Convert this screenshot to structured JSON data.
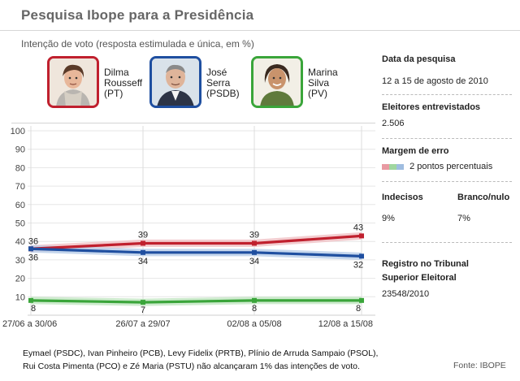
{
  "header": {
    "title": "Pesquisa Ibope para a Presidência",
    "subtitle": "Intenção de voto (resposta estimulada e única, em %)"
  },
  "candidates": [
    {
      "name1": "Dilma",
      "name2": "Rousseff",
      "party": "(PT)",
      "color": "#c0202e"
    },
    {
      "name1": "José",
      "name2": "Serra",
      "party": "(PSDB)",
      "color": "#1f4fa0"
    },
    {
      "name1": "Marina",
      "name2": "Silva",
      "party": "(PV)",
      "color": "#3aa53a"
    }
  ],
  "sidebar": {
    "date_label": "Data da pesquisa",
    "date_value": "12 a 15 de agosto de 2010",
    "voters_label": "Eleitores entrevistados",
    "voters_value": "2.506",
    "margin_label": "Margem de erro",
    "margin_value": "2 pontos percentuais",
    "undecided_label": "Indecisos",
    "undecided_value": "9%",
    "blank_label": "Branco/nulo",
    "blank_value": "7%",
    "registry_label": "Registro no Tribunal Superior Eleitoral",
    "registry_value": "23548/2010"
  },
  "footnote": {
    "line1": "Eymael (PSDC), Ivan Pinheiro (PCB), Levy Fidelix (PRTB), Plínio de Arruda Sampaio (PSOL),",
    "line2": "Rui Costa Pimenta (PCO) e Zé Maria (PSTU) não alcançaram 1% das intenções de voto."
  },
  "source": "Fonte: IBOPE",
  "chart_data": {
    "type": "line",
    "categories": [
      "27/06 a 30/06",
      "26/07 a 29/07",
      "02/08 a 05/08",
      "12/08 a 15/08"
    ],
    "series": [
      {
        "name": "Dilma Rousseff (PT)",
        "values": [
          36,
          39,
          39,
          43
        ],
        "color": "#c0202e",
        "band": "#f1c4c8"
      },
      {
        "name": "José Serra (PSDB)",
        "values": [
          36,
          34,
          34,
          32
        ],
        "color": "#1f4fa0",
        "band": "#bcd0ea"
      },
      {
        "name": "Marina Silva (PV)",
        "values": [
          8,
          7,
          8,
          8
        ],
        "color": "#3aa53a",
        "band": "#c6e8c6"
      }
    ],
    "yticks": [
      10,
      20,
      30,
      40,
      50,
      60,
      70,
      80,
      90,
      100
    ],
    "ylim": [
      0,
      100
    ],
    "margin_of_error": 2,
    "grid": true
  }
}
